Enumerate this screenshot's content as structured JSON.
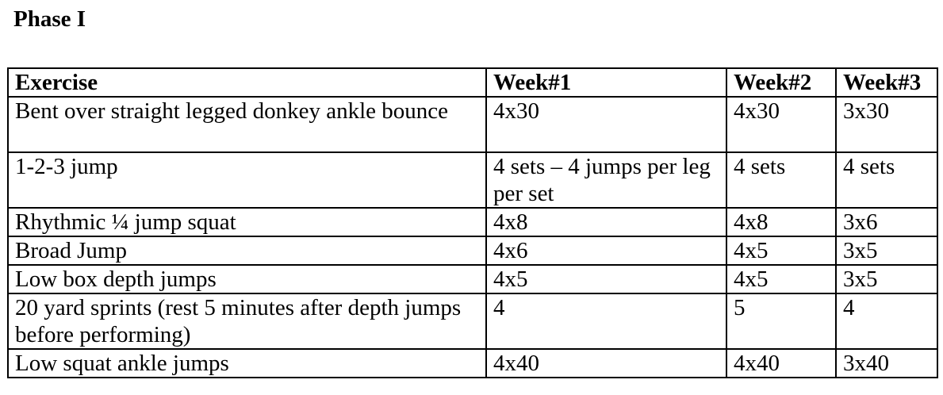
{
  "title": "Phase I",
  "table": {
    "headers": [
      "Exercise",
      "Week#1",
      "Week#2",
      "Week#3"
    ],
    "rows": [
      [
        "Bent over straight legged donkey ankle bounce",
        "4x30",
        "4x30",
        "3x30"
      ],
      [
        "1-2-3 jump",
        "4 sets – 4 jumps per leg per set",
        "4 sets",
        "4 sets"
      ],
      [
        "Rhythmic ¼ jump squat",
        "4x8",
        "4x8",
        "3x6"
      ],
      [
        "Broad Jump",
        "4x6",
        "4x5",
        "3x5"
      ],
      [
        "Low box depth jumps",
        "4x5",
        "4x5",
        "3x5"
      ],
      [
        "20 yard sprints (rest 5 minutes after depth jumps before performing)",
        "4",
        "5",
        "4"
      ],
      [
        "Low squat ankle jumps",
        "4x40",
        "4x40",
        "3x40"
      ]
    ]
  }
}
